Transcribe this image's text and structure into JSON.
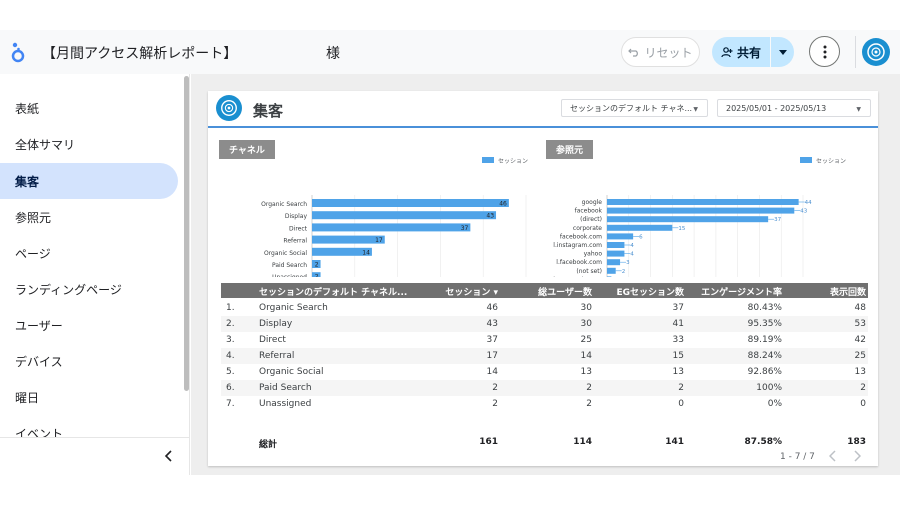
{
  "header": {
    "title": "【月間アクセス解析レポート】",
    "user_suffix": "様",
    "reset_label": "リセット",
    "share_label": "共有"
  },
  "sidebar": {
    "items": [
      {
        "label": "表紙"
      },
      {
        "label": "全体サマリ"
      },
      {
        "label": "集客"
      },
      {
        "label": "参照元"
      },
      {
        "label": "ページ"
      },
      {
        "label": "ランディングページ"
      },
      {
        "label": "ユーザー"
      },
      {
        "label": "デバイス"
      },
      {
        "label": "曜日"
      },
      {
        "label": "イベント"
      }
    ],
    "active_index": 2
  },
  "page": {
    "title": "集客",
    "channel_filter": "セッションのデフォルト チャネ...",
    "date_range": "2025/05/01 - 2025/05/13"
  },
  "charts": {
    "channel_tab": "チャネル",
    "referrer_tab": "参照元"
  },
  "chart_data": [
    {
      "type": "bar",
      "orientation": "horizontal",
      "categories": [
        "Organic Search",
        "Display",
        "Direct",
        "Referral",
        "Organic Social",
        "Paid Search",
        "Unassigned"
      ],
      "series": [
        {
          "name": "セッション",
          "values": [
            46,
            43,
            37,
            17,
            14,
            2,
            2
          ]
        }
      ],
      "xlim": [
        0,
        50
      ],
      "xticks": [
        0,
        10,
        20,
        30,
        40,
        50
      ],
      "legend": "top-right",
      "bar_color": "#4fa3e8"
    },
    {
      "type": "bar",
      "orientation": "horizontal",
      "categories": [
        "google",
        "facebook",
        "(direct)",
        "corporate",
        "facebook.com",
        "l.instagram.com",
        "yahoo",
        "l.facebook.com",
        "(not set)",
        "docs.google.com"
      ],
      "series": [
        {
          "name": "セッション",
          "values": [
            44,
            43,
            37,
            15,
            6,
            4,
            4,
            3,
            2,
            1
          ]
        }
      ],
      "xlim": [
        0,
        45
      ],
      "xticks": [
        0,
        5,
        10,
        15,
        20,
        25,
        30,
        35,
        40,
        45
      ],
      "legend": "top-right",
      "bar_color": "#4fa3e8"
    }
  ],
  "table": {
    "columns": [
      "セッションのデフォルト チャネル...",
      "セッション ▾",
      "総ユーザー数",
      "EGセッション数",
      "エンゲージメント率",
      "表示回数"
    ],
    "rows": [
      [
        "1.",
        "Organic Search",
        "46",
        "30",
        "37",
        "80.43%",
        "48"
      ],
      [
        "2.",
        "Display",
        "43",
        "30",
        "41",
        "95.35%",
        "53"
      ],
      [
        "3.",
        "Direct",
        "37",
        "25",
        "33",
        "89.19%",
        "42"
      ],
      [
        "4.",
        "Referral",
        "17",
        "14",
        "15",
        "88.24%",
        "25"
      ],
      [
        "5.",
        "Organic Social",
        "14",
        "13",
        "13",
        "92.86%",
        "13"
      ],
      [
        "6.",
        "Paid Search",
        "2",
        "2",
        "2",
        "100%",
        "2"
      ],
      [
        "7.",
        "Unassigned",
        "2",
        "2",
        "0",
        "0%",
        "0"
      ]
    ],
    "total": [
      "総計",
      "161",
      "114",
      "141",
      "87.58%",
      "183"
    ],
    "pagination": "1 - 7 / 7"
  }
}
